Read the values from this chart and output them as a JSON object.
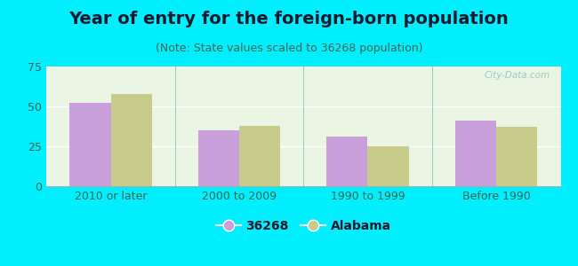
{
  "title": "Year of entry for the foreign-born population",
  "subtitle": "(Note: State values scaled to 36268 population)",
  "categories": [
    "2010 or later",
    "2000 to 2009",
    "1990 to 1999",
    "Before 1990"
  ],
  "series_36268": [
    52,
    35,
    31,
    41
  ],
  "series_alabama": [
    58,
    38,
    25,
    37
  ],
  "color_36268": "#c9a0dc",
  "color_alabama": "#c8cc8a",
  "ylim": [
    0,
    75
  ],
  "yticks": [
    0,
    25,
    50,
    75
  ],
  "legend_labels": [
    "36268",
    "Alabama"
  ],
  "background_outer": "#00eeff",
  "background_inner_top": "#ffffff",
  "background_inner_bottom": "#d8ecd0",
  "bar_width": 0.32,
  "title_fontsize": 14,
  "subtitle_fontsize": 9,
  "tick_fontsize": 9,
  "legend_fontsize": 10,
  "watermark_text": "City-Data.com"
}
